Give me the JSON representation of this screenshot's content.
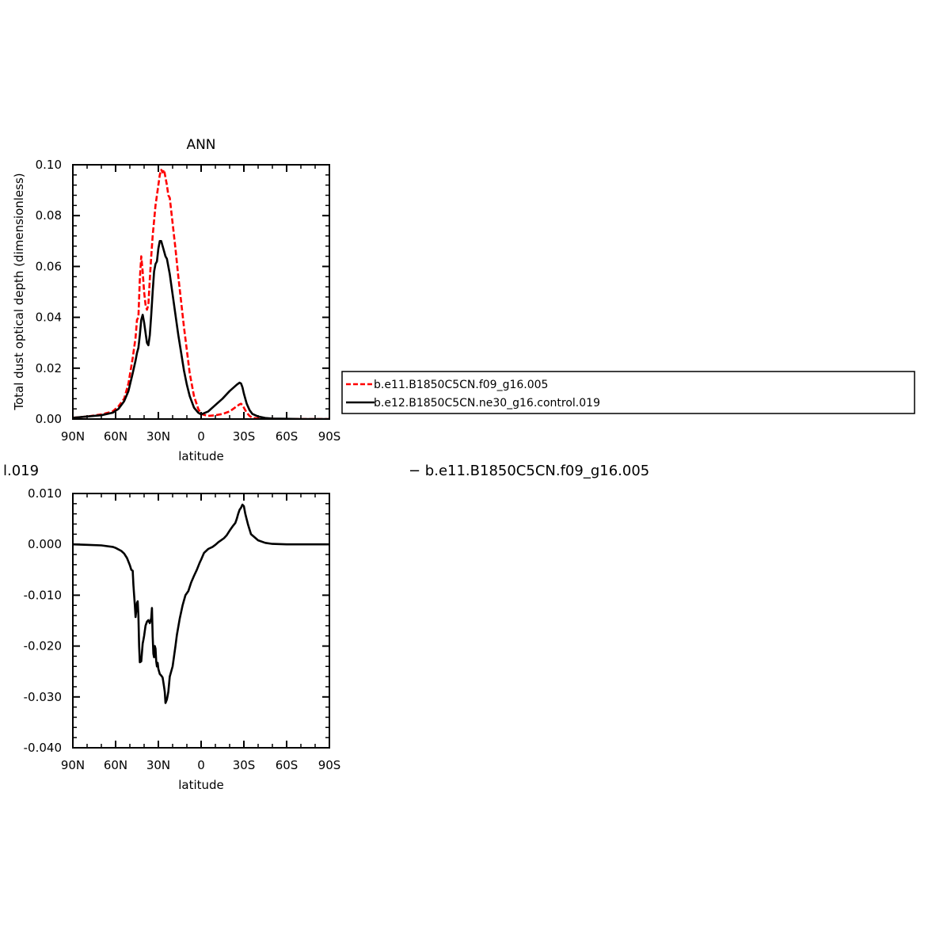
{
  "chart_data": [
    {
      "type": "line",
      "title": "ANN",
      "xlabel": "latitude",
      "ylabel": "Total dust optical depth (dimensionless)",
      "xlim": [
        90,
        -90
      ],
      "ylim": [
        0,
        0.1
      ],
      "x_tick_values": [
        90,
        60,
        30,
        0,
        -30,
        -60,
        -90
      ],
      "x_tick_labels": [
        "90N",
        "60N",
        "30N",
        "0",
        "30S",
        "60S",
        "90S"
      ],
      "y_tick_values": [
        0,
        0.02,
        0.04,
        0.06,
        0.08,
        0.1
      ],
      "y_tick_labels": [
        "0.00",
        "0.02",
        "0.04",
        "0.06",
        "0.08",
        "0.10"
      ],
      "legend_position": "right",
      "series": [
        {
          "name": "b.e11.B1850C5CN.f09_g16.005",
          "color": "#ff0000",
          "dash": "dashed",
          "x": [
            90,
            80,
            70,
            62,
            58,
            54,
            51,
            48,
            46,
            45,
            44,
            43,
            42,
            41,
            40,
            39,
            38,
            37,
            36,
            35,
            34,
            33,
            32,
            31,
            30,
            29,
            28,
            27,
            26,
            25,
            24,
            23,
            22,
            21,
            20,
            18,
            16,
            14,
            12,
            10,
            8,
            5,
            2,
            0,
            -5,
            -10,
            -15,
            -20,
            -25,
            -27,
            -28,
            -29,
            -30,
            -32,
            -34,
            -36,
            -40,
            -45,
            -50,
            -60,
            -70,
            -80,
            -90
          ],
          "y": [
            0.0005,
            0.001,
            0.0018,
            0.003,
            0.005,
            0.008,
            0.014,
            0.024,
            0.032,
            0.039,
            0.04,
            0.055,
            0.064,
            0.058,
            0.05,
            0.045,
            0.043,
            0.045,
            0.055,
            0.064,
            0.072,
            0.078,
            0.084,
            0.088,
            0.092,
            0.096,
            0.098,
            0.097,
            0.098,
            0.095,
            0.092,
            0.088,
            0.087,
            0.082,
            0.077,
            0.067,
            0.056,
            0.046,
            0.036,
            0.027,
            0.018,
            0.009,
            0.004,
            0.002,
            0.0012,
            0.0015,
            0.002,
            0.003,
            0.005,
            0.0058,
            0.006,
            0.0055,
            0.0045,
            0.0025,
            0.0012,
            0.0005,
            0.0002,
            0.0001,
            0.0001,
            0.0,
            0.0,
            0.0,
            0.0
          ]
        },
        {
          "name": "b.e12.B1850C5CN.ne30_g16.control.019",
          "color": "#000000",
          "dash": "solid",
          "x": [
            90,
            80,
            70,
            62,
            58,
            54,
            51,
            48,
            46,
            45,
            44,
            43,
            42,
            41,
            40,
            39,
            38,
            37,
            36,
            35,
            34,
            33,
            32,
            31,
            30,
            29,
            28,
            27,
            26,
            25,
            24,
            23,
            22,
            21,
            20,
            18,
            16,
            14,
            12,
            10,
            8,
            5,
            2,
            0,
            -5,
            -10,
            -15,
            -20,
            -25,
            -27,
            -28,
            -29,
            -30,
            -32,
            -34,
            -36,
            -40,
            -45,
            -50,
            -60,
            -70,
            -80,
            -90
          ],
          "y": [
            0.0005,
            0.001,
            0.0015,
            0.0025,
            0.004,
            0.007,
            0.011,
            0.018,
            0.023,
            0.026,
            0.028,
            0.033,
            0.039,
            0.041,
            0.038,
            0.034,
            0.03,
            0.029,
            0.033,
            0.041,
            0.05,
            0.058,
            0.061,
            0.062,
            0.067,
            0.07,
            0.07,
            0.068,
            0.066,
            0.064,
            0.063,
            0.06,
            0.057,
            0.053,
            0.049,
            0.041,
            0.033,
            0.026,
            0.019,
            0.0135,
            0.009,
            0.0045,
            0.0025,
            0.0018,
            0.003,
            0.0055,
            0.008,
            0.011,
            0.0135,
            0.0143,
            0.014,
            0.0125,
            0.01,
            0.006,
            0.0035,
            0.002,
            0.001,
            0.0004,
            0.0002,
            0.0001,
            0.0,
            0.0,
            0.0
          ]
        }
      ]
    },
    {
      "type": "line",
      "title": "",
      "xlabel": "latitude",
      "ylabel": "",
      "xlim": [
        90,
        -90
      ],
      "ylim": [
        -0.04,
        0.01
      ],
      "x_tick_values": [
        90,
        60,
        30,
        0,
        -30,
        -60,
        -90
      ],
      "x_tick_labels": [
        "90N",
        "60N",
        "30N",
        "0",
        "30S",
        "60S",
        "90S"
      ],
      "y_tick_values": [
        -0.04,
        -0.03,
        -0.02,
        -0.01,
        0.0,
        0.01
      ],
      "y_tick_labels": [
        "-0.040",
        "-0.030",
        "-0.020",
        "-0.010",
        "0.000",
        "0.010"
      ],
      "series": [
        {
          "name": "",
          "color": "#000000",
          "dash": "solid",
          "x": [
            90,
            80,
            70,
            62,
            60,
            56,
            54,
            52,
            50,
            49,
            48,
            47.5,
            47,
            46.5,
            46,
            45.5,
            45,
            44.5,
            44,
            43.5,
            43,
            42,
            41,
            40.5,
            40,
            39,
            38,
            37,
            36,
            35.5,
            35,
            34.5,
            34,
            33.5,
            33,
            32.5,
            32,
            31.5,
            31,
            30.5,
            30,
            29,
            28,
            27,
            26,
            25.5,
            25,
            24,
            23,
            22,
            21,
            20,
            19,
            18,
            17,
            15,
            13,
            11,
            9,
            7,
            5,
            3,
            1,
            0,
            -2,
            -5,
            -8,
            -10,
            -12,
            -14,
            -16,
            -18,
            -20,
            -22,
            -24,
            -25,
            -26,
            -27,
            -28,
            -29,
            -30,
            -31,
            -33,
            -35,
            -40,
            -45,
            -50,
            -60,
            -70,
            -80,
            -90
          ],
          "y": [
            0.0,
            -0.0001,
            -0.0002,
            -0.0005,
            -0.0007,
            -0.0013,
            -0.0018,
            -0.0027,
            -0.0041,
            -0.005,
            -0.0052,
            -0.008,
            -0.01,
            -0.012,
            -0.0143,
            -0.013,
            -0.0115,
            -0.0112,
            -0.014,
            -0.02,
            -0.0232,
            -0.023,
            -0.0195,
            -0.0188,
            -0.018,
            -0.016,
            -0.0152,
            -0.0149,
            -0.0155,
            -0.015,
            -0.0145,
            -0.0125,
            -0.018,
            -0.0215,
            -0.0222,
            -0.02,
            -0.0205,
            -0.023,
            -0.024,
            -0.0233,
            -0.0245,
            -0.0255,
            -0.0258,
            -0.0262,
            -0.028,
            -0.029,
            -0.0312,
            -0.0305,
            -0.029,
            -0.026,
            -0.025,
            -0.024,
            -0.022,
            -0.02,
            -0.0178,
            -0.0146,
            -0.012,
            -0.01,
            -0.0092,
            -0.0075,
            -0.0062,
            -0.005,
            -0.0036,
            -0.003,
            -0.0017,
            -0.0009,
            -0.0005,
            -0.0001,
            0.0004,
            0.0008,
            0.0012,
            0.0018,
            0.0027,
            0.0035,
            0.0042,
            0.005,
            0.006,
            0.0068,
            0.0072,
            0.0078,
            0.0075,
            0.006,
            0.0038,
            0.002,
            0.0008,
            0.0003,
            0.0001,
            0.0,
            0.0,
            0.0,
            0.0
          ]
        }
      ]
    }
  ],
  "bottom_panel_partial_title": "l.019",
  "middle_text": "− b.e11.B1850C5CN.f09_g16.005"
}
